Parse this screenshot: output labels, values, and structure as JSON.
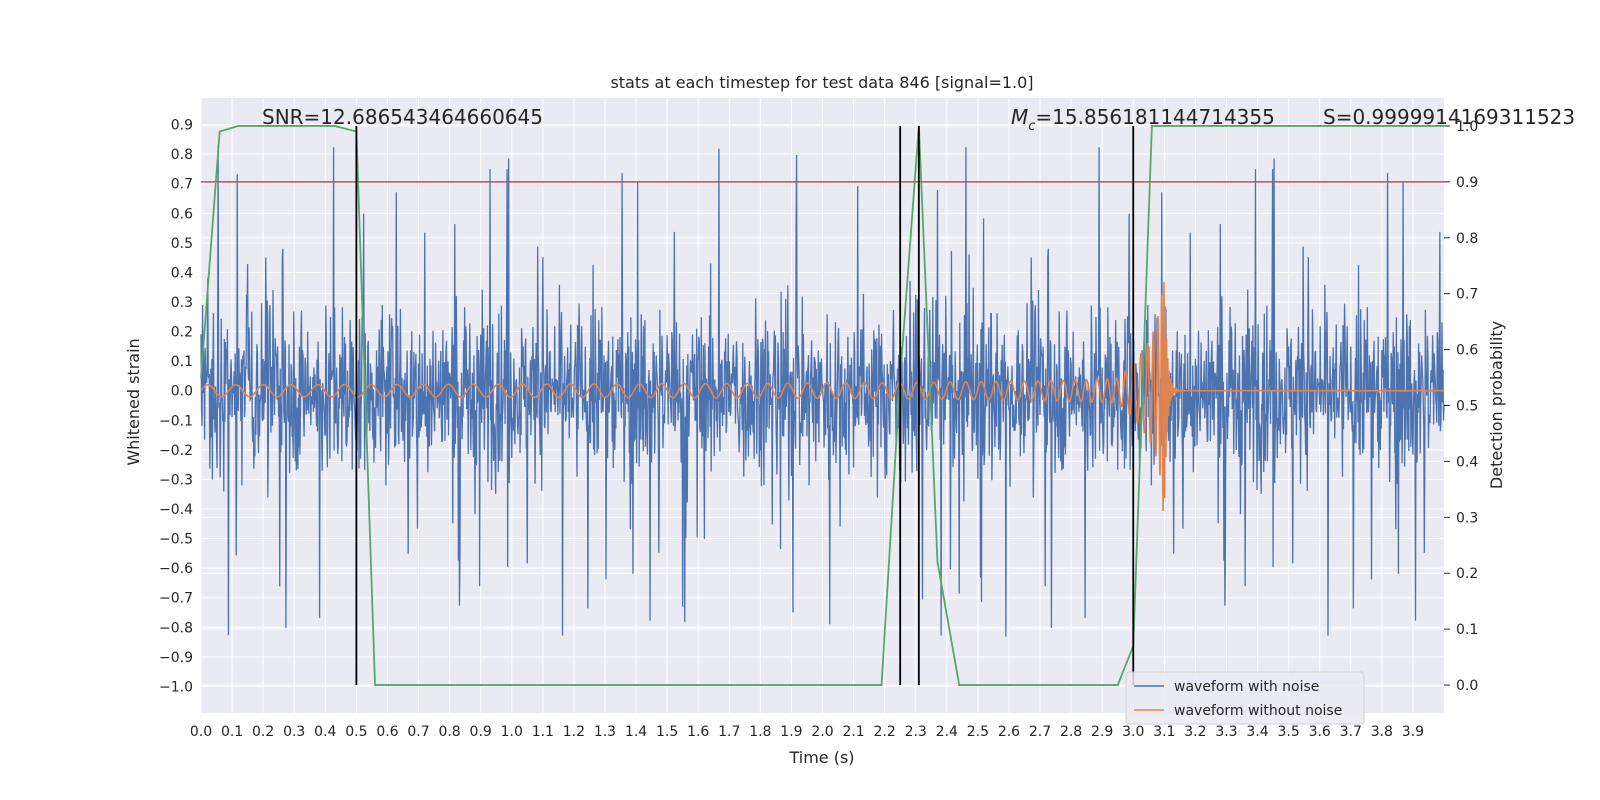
{
  "chart_data": {
    "type": "line",
    "title": "stats at each timestep for test data 846 [signal=1.0]",
    "xlabel": "Time (s)",
    "ylabel_left": "Whitened strain",
    "ylabel_right": "Detection probability",
    "xlim": [
      0.0,
      4.0
    ],
    "ylim_left": [
      -1.09,
      0.99
    ],
    "ylim_right": [
      -0.05,
      1.05
    ],
    "x_ticks": [
      "0.0",
      "0.1",
      "0.2",
      "0.3",
      "0.4",
      "0.5",
      "0.6",
      "0.7",
      "0.8",
      "0.9",
      "1.0",
      "1.1",
      "1.2",
      "1.3",
      "1.4",
      "1.5",
      "1.6",
      "1.7",
      "1.8",
      "1.9",
      "2.0",
      "2.1",
      "2.2",
      "2.3",
      "2.4",
      "2.5",
      "2.6",
      "2.7",
      "2.8",
      "2.9",
      "3.0",
      "3.1",
      "3.2",
      "3.3",
      "3.4",
      "3.5",
      "3.6",
      "3.7",
      "3.8",
      "3.9"
    ],
    "y_ticks_left": [
      "0.9",
      "0.8",
      "0.7",
      "0.6",
      "0.5",
      "0.4",
      "0.3",
      "0.2",
      "0.1",
      "0.0",
      "−0.1",
      "−0.2",
      "−0.3",
      "−0.4",
      "−0.5",
      "−0.6",
      "−0.7",
      "−0.8",
      "−0.9",
      "−1.0"
    ],
    "y_ticks_right": [
      "1.0",
      "0.9",
      "0.8",
      "0.7",
      "0.6",
      "0.5",
      "0.4",
      "0.3",
      "0.2",
      "0.1",
      "0.0"
    ],
    "annotations": {
      "snr": "SNR=12.686543464660645",
      "mc_symbol": "M",
      "mc_sub": "c",
      "mc_value": "=15.856181144714355",
      "s": "S=0.9999914169311523"
    },
    "threshold_probability": 0.9,
    "vertical_lines_time": [
      0.5,
      2.25,
      2.31,
      3.0
    ],
    "series": [
      {
        "name": "waveform with noise",
        "color": "#4c72b0",
        "kind": "noise",
        "noise_max": 0.88,
        "noise_min": -0.84
      },
      {
        "name": "waveform without noise",
        "color": "#dd8452",
        "kind": "chirp",
        "merger_time": 3.1,
        "start_freq_hz": 11,
        "end_freq_hz": 60,
        "start_amp": 0.02,
        "peak_amp": 0.46
      },
      {
        "name": "detection probability",
        "color": "#55a868",
        "x": [
          0.0,
          0.06,
          0.12,
          0.18,
          0.43,
          0.5,
          0.56,
          0.62,
          1.2,
          2.0,
          2.19,
          2.25,
          2.31,
          2.37,
          2.44,
          2.5,
          2.95,
          3.0,
          3.06,
          3.12,
          3.5,
          4.0
        ],
        "y": [
          0.55,
          0.99,
          1.0,
          1.0,
          1.0,
          0.99,
          0.0,
          0.0,
          0.0,
          0.0,
          0.0,
          0.55,
          1.0,
          0.22,
          0.0,
          0.0,
          0.0,
          0.07,
          1.0,
          1.0,
          1.0,
          1.0
        ]
      }
    ],
    "legend": [
      "waveform with noise",
      "waveform without noise"
    ],
    "legend_position": "lower-right"
  },
  "colors": {
    "background": "#eaeaf2",
    "grid": "#ffffff",
    "noise": "#4c72b0",
    "chirp": "#dd8452",
    "probability": "#55a868",
    "threshold": "#c44e52",
    "vline": "#000000"
  }
}
